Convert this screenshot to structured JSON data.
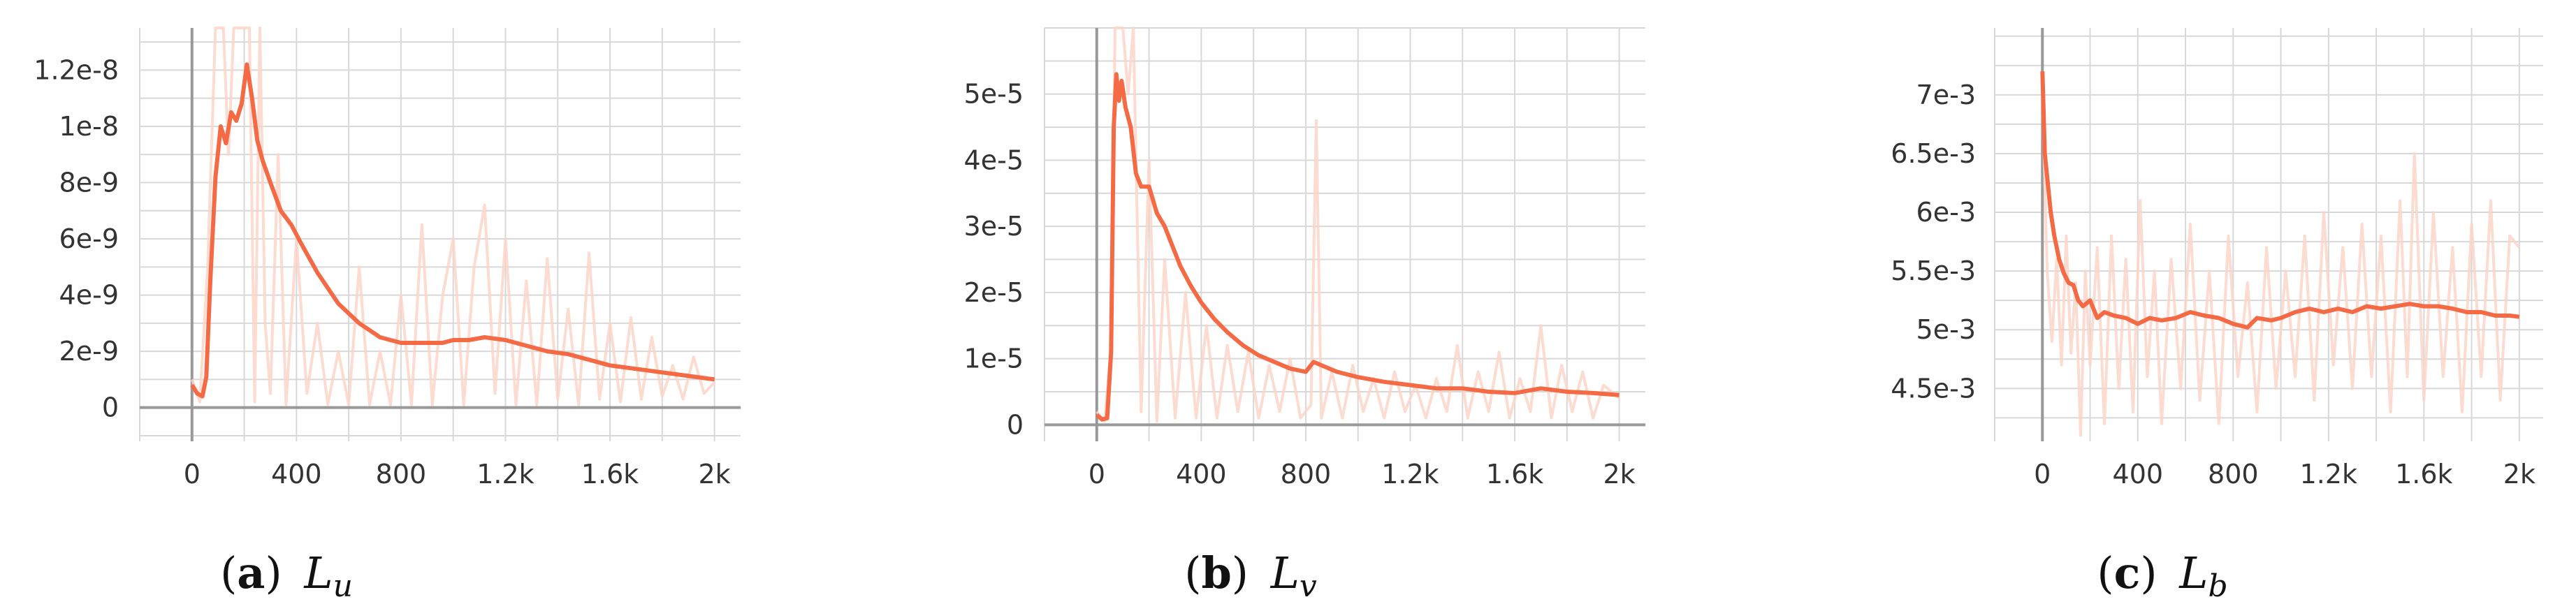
{
  "colors": {
    "smoothed": "#f46a45",
    "raw": "#fbd5c8",
    "grid": "#d8d8d8",
    "axis": "#999999",
    "text": "#333333"
  },
  "chart_data": [
    {
      "type": "line",
      "panel": "(a)",
      "caption_letter": "a",
      "caption_var": "L",
      "caption_sub": "u",
      "xlim": [
        -200,
        2100
      ],
      "ylim": [
        -1.2e-09,
        1.35e-08
      ],
      "x_ticks": [
        0,
        400,
        800,
        1200,
        1600,
        2000
      ],
      "x_tick_labels": [
        "0",
        "400",
        "800",
        "1.2k",
        "1.6k",
        "2k"
      ],
      "y_ticks": [
        0,
        2e-09,
        4e-09,
        6e-09,
        8e-09,
        1e-08,
        1.2e-08
      ],
      "y_tick_labels": [
        "0",
        "2e-9",
        "4e-9",
        "6e-9",
        "8e-9",
        "1e-8",
        "1.2e-8"
      ],
      "grid": true,
      "series": [
        {
          "role": "smoothed",
          "x": [
            0,
            20,
            40,
            55,
            70,
            90,
            110,
            130,
            150,
            170,
            190,
            210,
            230,
            250,
            270,
            300,
            340,
            380,
            420,
            480,
            560,
            640,
            720,
            800,
            880,
            960,
            1000,
            1060,
            1120,
            1200,
            1280,
            1360,
            1440,
            1520,
            1600,
            1680,
            1760,
            1840,
            1920,
            2000
          ],
          "y": [
            8e-10,
            5e-10,
            4e-10,
            1.1e-09,
            4.5e-09,
            8.2e-09,
            1e-08,
            9.4e-09,
            1.05e-08,
            1.02e-08,
            1.08e-08,
            1.22e-08,
            1.1e-08,
            9.5e-09,
            8.8e-09,
            8e-09,
            7e-09,
            6.5e-09,
            5.8e-09,
            4.8e-09,
            3.7e-09,
            3e-09,
            2.5e-09,
            2.3e-09,
            2.3e-09,
            2.3e-09,
            2.4e-09,
            2.4e-09,
            2.5e-09,
            2.4e-09,
            2.2e-09,
            2e-09,
            1.9e-09,
            1.7e-09,
            1.5e-09,
            1.4e-09,
            1.3e-09,
            1.2e-09,
            1.1e-09,
            1e-09
          ]
        },
        {
          "role": "raw",
          "x": [
            0,
            30,
            60,
            90,
            120,
            140,
            160,
            180,
            200,
            220,
            240,
            260,
            280,
            300,
            330,
            360,
            400,
            440,
            480,
            520,
            560,
            600,
            640,
            680,
            720,
            760,
            800,
            840,
            880,
            920,
            960,
            1000,
            1040,
            1080,
            1120,
            1160,
            1200,
            1240,
            1280,
            1320,
            1360,
            1400,
            1440,
            1480,
            1520,
            1560,
            1600,
            1640,
            1680,
            1720,
            1760,
            1800,
            1840,
            1880,
            1920,
            1960,
            2000
          ],
          "y": [
            1e-09,
            2e-10,
            5e-09,
            1.35e-08,
            1.35e-08,
            9e-09,
            1.35e-08,
            1.35e-08,
            1.35e-08,
            1.35e-08,
            2e-10,
            1.35e-08,
            3e-09,
            5e-10,
            9e-09,
            1e-10,
            6e-09,
            5e-10,
            3e-09,
            1e-10,
            2e-09,
            1e-10,
            5e-09,
            1e-10,
            2e-09,
            1e-10,
            4e-09,
            1e-10,
            6.5e-09,
            1e-10,
            4e-09,
            6e-09,
            1e-10,
            5e-09,
            7.2e-09,
            5e-10,
            6e-09,
            1e-10,
            4.5e-09,
            1e-10,
            5.3e-09,
            3e-10,
            3.5e-09,
            1e-10,
            5.5e-09,
            3e-10,
            3e-09,
            2e-10,
            3.2e-09,
            3e-10,
            2.5e-09,
            4e-10,
            1.5e-09,
            3e-10,
            1.8e-09,
            5e-10,
            9e-10
          ]
        }
      ]
    },
    {
      "type": "line",
      "panel": "(b)",
      "caption_letter": "b",
      "caption_var": "L",
      "caption_sub": "v",
      "xlim": [
        -200,
        2100
      ],
      "ylim": [
        -2.5e-06,
        6e-05
      ],
      "x_ticks": [
        0,
        400,
        800,
        1200,
        1600,
        2000
      ],
      "x_tick_labels": [
        "0",
        "400",
        "800",
        "1.2k",
        "1.6k",
        "2k"
      ],
      "y_ticks": [
        0,
        1e-05,
        2e-05,
        3e-05,
        4e-05,
        5e-05
      ],
      "y_tick_labels": [
        "0",
        "1e-5",
        "2e-5",
        "3e-5",
        "4e-5",
        "5e-5"
      ],
      "grid": true,
      "series": [
        {
          "role": "smoothed",
          "x": [
            0,
            20,
            40,
            55,
            65,
            75,
            85,
            95,
            110,
            130,
            150,
            170,
            200,
            230,
            260,
            290,
            320,
            360,
            400,
            450,
            500,
            560,
            620,
            680,
            740,
            800,
            830,
            860,
            920,
            1000,
            1100,
            1200,
            1300,
            1400,
            1500,
            1600,
            1700,
            1800,
            1900,
            2000
          ],
          "y": [
            1.5e-06,
            8e-07,
            1e-06,
            1.1e-05,
            4.5e-05,
            5.3e-05,
            4.9e-05,
            5.2e-05,
            4.8e-05,
            4.5e-05,
            3.8e-05,
            3.6e-05,
            3.6e-05,
            3.2e-05,
            3e-05,
            2.7e-05,
            2.4e-05,
            2.1e-05,
            1.85e-05,
            1.6e-05,
            1.4e-05,
            1.2e-05,
            1.05e-05,
            9.5e-06,
            8.5e-06,
            8e-06,
            9.5e-06,
            9e-06,
            8e-06,
            7.2e-06,
            6.5e-06,
            6e-06,
            5.5e-06,
            5.5e-06,
            5e-06,
            4.8e-06,
            5.5e-06,
            5e-06,
            4.8e-06,
            4.5e-06
          ]
        },
        {
          "role": "raw",
          "x": [
            0,
            30,
            55,
            70,
            85,
            100,
            120,
            140,
            170,
            200,
            230,
            260,
            300,
            340,
            380,
            420,
            460,
            500,
            540,
            580,
            620,
            660,
            700,
            740,
            780,
            820,
            840,
            860,
            900,
            940,
            980,
            1020,
            1060,
            1100,
            1140,
            1180,
            1220,
            1260,
            1300,
            1340,
            1380,
            1420,
            1460,
            1500,
            1540,
            1580,
            1620,
            1660,
            1700,
            1740,
            1780,
            1820,
            1860,
            1900,
            1940,
            2000
          ],
          "y": [
            2e-06,
            5e-07,
            1.2e-05,
            6e-05,
            6e-05,
            6e-05,
            5e-05,
            6e-05,
            2e-06,
            4e-05,
            5e-07,
            2.5e-05,
            1e-06,
            2e-05,
            1e-06,
            1.5e-05,
            1e-06,
            1.2e-05,
            2e-06,
            1.1e-05,
            1e-06,
            9e-06,
            2e-06,
            1e-05,
            1e-06,
            3e-06,
            4.6e-05,
            1e-06,
            8e-06,
            1e-06,
            9e-06,
            2e-06,
            7e-06,
            1e-06,
            8e-06,
            2e-06,
            6e-06,
            1e-06,
            7e-06,
            2e-06,
            1.2e-05,
            1e-06,
            8e-06,
            2e-06,
            1.1e-05,
            1e-06,
            7e-06,
            2e-06,
            1.5e-05,
            1e-06,
            9e-06,
            2e-06,
            8e-06,
            1e-06,
            6e-06,
            4e-06
          ]
        }
      ]
    },
    {
      "type": "line",
      "panel": "(c)",
      "caption_letter": "c",
      "caption_var": "L",
      "caption_sub": "b",
      "xlim": [
        -200,
        2100
      ],
      "ylim": [
        0.00405,
        0.00757
      ],
      "x_ticks": [
        0,
        400,
        800,
        1200,
        1600,
        2000
      ],
      "x_tick_labels": [
        "0",
        "400",
        "800",
        "1.2k",
        "1.6k",
        "2k"
      ],
      "y_ticks": [
        0.0045,
        0.005,
        0.0055,
        0.006,
        0.0065,
        0.007
      ],
      "y_tick_labels": [
        "4.5e-3",
        "5e-3",
        "5.5e-3",
        "6e-3",
        "6.5e-3",
        "7e-3"
      ],
      "grid": true,
      "series": [
        {
          "role": "smoothed",
          "x": [
            0,
            10,
            20,
            35,
            50,
            70,
            90,
            110,
            130,
            150,
            170,
            200,
            230,
            260,
            300,
            350,
            400,
            450,
            500,
            560,
            620,
            680,
            740,
            800,
            860,
            900,
            960,
            1000,
            1060,
            1120,
            1180,
            1240,
            1300,
            1360,
            1420,
            1480,
            1540,
            1600,
            1660,
            1720,
            1780,
            1840,
            1900,
            1960,
            2000
          ],
          "y": [
            0.0072,
            0.0065,
            0.0063,
            0.006,
            0.0058,
            0.0056,
            0.00548,
            0.0054,
            0.00538,
            0.00525,
            0.0052,
            0.00525,
            0.0051,
            0.00515,
            0.00512,
            0.0051,
            0.00505,
            0.0051,
            0.00508,
            0.0051,
            0.00515,
            0.00512,
            0.0051,
            0.00505,
            0.00502,
            0.0051,
            0.00508,
            0.0051,
            0.00515,
            0.00518,
            0.00515,
            0.00518,
            0.00515,
            0.0052,
            0.00518,
            0.0052,
            0.00522,
            0.0052,
            0.0052,
            0.00518,
            0.00515,
            0.00515,
            0.00512,
            0.00512,
            0.00511
          ]
        },
        {
          "role": "raw",
          "x": [
            0,
            20,
            40,
            60,
            80,
            100,
            120,
            140,
            160,
            180,
            200,
            230,
            260,
            290,
            320,
            350,
            380,
            410,
            440,
            470,
            500,
            540,
            580,
            620,
            660,
            700,
            740,
            780,
            820,
            860,
            900,
            940,
            980,
            1020,
            1060,
            1100,
            1140,
            1180,
            1220,
            1260,
            1300,
            1340,
            1380,
            1420,
            1460,
            1500,
            1530,
            1560,
            1600,
            1640,
            1680,
            1720,
            1760,
            1800,
            1840,
            1880,
            1920,
            1960,
            2000
          ],
          "y": [
            0.007,
            0.0055,
            0.0049,
            0.0056,
            0.0047,
            0.0058,
            0.0048,
            0.0054,
            0.0041,
            0.0055,
            0.0047,
            0.0057,
            0.0042,
            0.0058,
            0.0045,
            0.0056,
            0.0043,
            0.0061,
            0.0046,
            0.0055,
            0.0042,
            0.0056,
            0.0045,
            0.0059,
            0.0044,
            0.0055,
            0.0042,
            0.0058,
            0.0046,
            0.0054,
            0.0043,
            0.0057,
            0.0045,
            0.0055,
            0.0046,
            0.0058,
            0.0044,
            0.006,
            0.0047,
            0.0057,
            0.0045,
            0.0059,
            0.0046,
            0.0058,
            0.0043,
            0.0061,
            0.0046,
            0.0065,
            0.0044,
            0.006,
            0.0046,
            0.0057,
            0.0043,
            0.0059,
            0.0046,
            0.0061,
            0.0044,
            0.0058,
            0.0057
          ]
        }
      ]
    }
  ]
}
